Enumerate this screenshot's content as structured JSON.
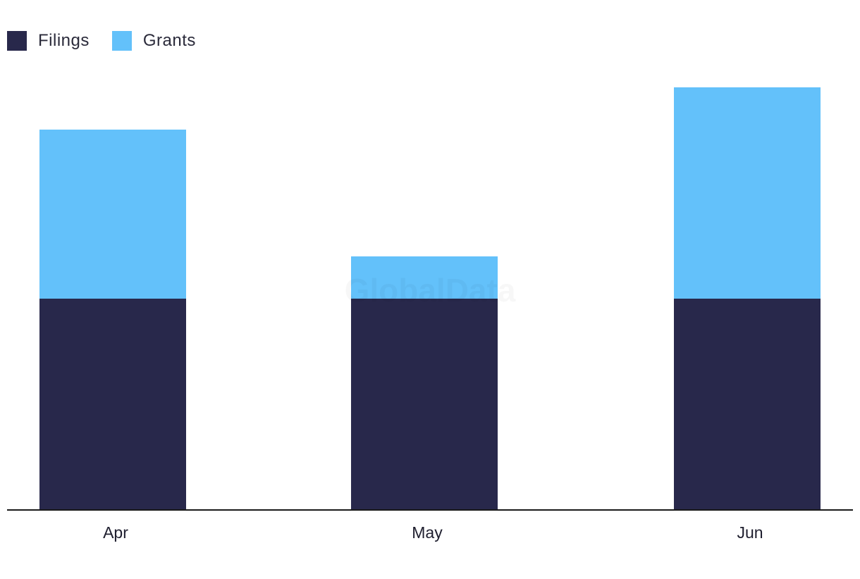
{
  "chart_data": {
    "type": "bar",
    "stacked": true,
    "categories": [
      "Apr",
      "May",
      "Jun"
    ],
    "series": [
      {
        "name": "Filings",
        "values": [
          5,
          5,
          5
        ],
        "color": "#28284b"
      },
      {
        "name": "Grants",
        "values": [
          4,
          1,
          5
        ],
        "color": "#63c1fa"
      }
    ],
    "ylim": [
      0,
      10
    ],
    "grid": false,
    "legend": "top-left"
  },
  "watermark": "GlobalData",
  "colors": {
    "axis": "#1a1a1a",
    "tick_label": "#1e1e2e",
    "background": "#ffffff"
  }
}
